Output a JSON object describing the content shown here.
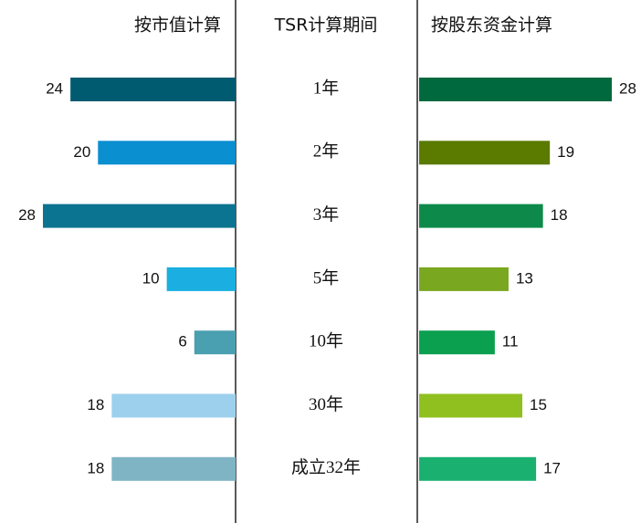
{
  "chart_data": {
    "type": "butterfly",
    "category_label": "TSR计算期间",
    "categories": [
      "1年",
      "2年",
      "3年",
      "5年",
      "10年",
      "30年",
      "成立32年"
    ],
    "xlim": [
      0,
      28
    ],
    "series": [
      {
        "name": "按市值计算",
        "side": "left",
        "values": [
          24,
          20,
          28,
          10,
          6,
          18,
          18
        ],
        "colors": [
          "#005a70",
          "#0a8fd0",
          "#0b7490",
          "#1aafe0",
          "#4a9fb0",
          "#9dd0ec",
          "#7fb4c4"
        ]
      },
      {
        "name": "按股东资金计算",
        "side": "right",
        "values": [
          28,
          19,
          18,
          13,
          11,
          15,
          17
        ],
        "colors": [
          "#00693e",
          "#5a7a00",
          "#0d8a4a",
          "#7aa720",
          "#0aa050",
          "#90c020",
          "#1ab070"
        ]
      }
    ]
  }
}
